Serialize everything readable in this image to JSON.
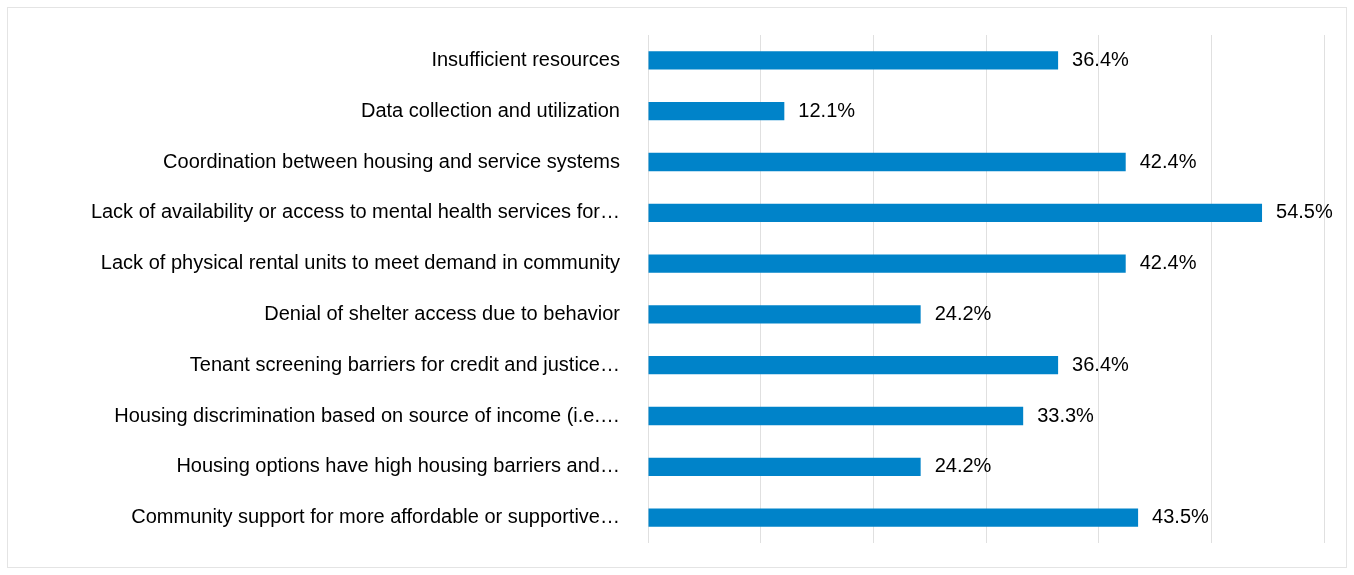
{
  "chart_data": {
    "type": "bar",
    "orientation": "horizontal",
    "categories": [
      "Insufficient resources",
      "Data collection and utilization",
      "Coordination between housing and service systems",
      "Lack of availability or access to mental health services for…",
      "Lack of physical rental units to meet demand in community",
      "Denial of shelter access due to behavior",
      "Tenant screening barriers for credit and justice…",
      "Housing discrimination based on source of income (i.e.…",
      "Housing options have high housing barriers and…",
      "Community support for more affordable or supportive…"
    ],
    "values": [
      36.4,
      12.1,
      42.4,
      54.5,
      42.4,
      24.2,
      36.4,
      33.3,
      24.2,
      43.5
    ],
    "value_labels": [
      "36.4%",
      "12.1%",
      "42.4%",
      "54.5%",
      "42.4%",
      "24.2%",
      "36.4%",
      "33.3%",
      "24.2%",
      "43.5%"
    ],
    "color": "#0083c9",
    "xlim": [
      0,
      60
    ],
    "xticks": [
      {
        "value": 0,
        "label": null
      },
      {
        "value": 10,
        "label": null
      },
      {
        "value": 20,
        "label": null
      },
      {
        "value": 30,
        "label": null
      },
      {
        "value": 40,
        "label": null
      },
      {
        "value": 50,
        "label": null
      },
      {
        "value": 60,
        "label": null
      }
    ],
    "tick_labels": "y",
    "grid": "x"
  }
}
